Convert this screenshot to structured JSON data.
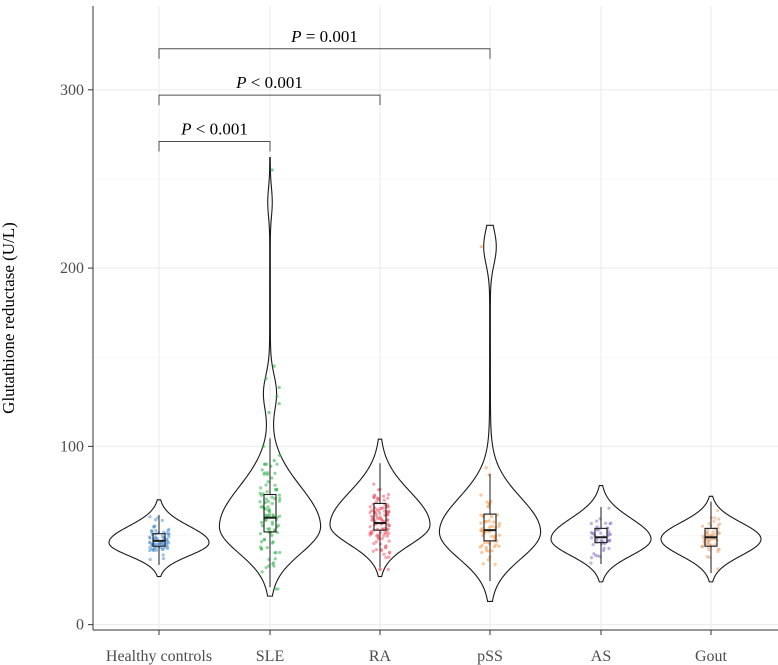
{
  "chart_data": {
    "type": "violin",
    "title": "",
    "xlabel": "",
    "ylabel": "Glutathione reductase (U/L)",
    "ylim": [
      -3,
      347
    ],
    "yticks": [
      0,
      100,
      200,
      300
    ],
    "y_tick_labels": [
      "0",
      "100",
      "200",
      "300"
    ],
    "grid": true,
    "categories": [
      "Healthy controls",
      "SLE",
      "RA",
      "pSS",
      "AS",
      "Gout"
    ],
    "groups": [
      {
        "name": "Healthy controls",
        "color": "#4a8fcf",
        "min": 27,
        "q1": 44,
        "median": 47,
        "q3": 51,
        "max": 70,
        "mode": 46,
        "n": 70,
        "jitter_max": 64
      },
      {
        "name": "SLE",
        "color": "#2db34a",
        "min": 16,
        "q1": 52,
        "median": 60,
        "q3": 73,
        "max": 262,
        "mode": 55,
        "n": 90,
        "jitter_max": 255
      },
      {
        "name": "RA",
        "color": "#ef5a6a",
        "min": 27,
        "q1": 53,
        "median": 57,
        "q3": 68,
        "max": 104,
        "mode": 56,
        "n": 110,
        "jitter_max": 88
      },
      {
        "name": "pSS",
        "color": "#f59a4a",
        "min": 13,
        "q1": 47,
        "median": 53,
        "q3": 62,
        "max": 224,
        "mode": 52,
        "n": 55,
        "jitter_max": 212
      },
      {
        "name": "AS",
        "color": "#8e72c4",
        "min": 24,
        "q1": 46,
        "median": 49,
        "q3": 54,
        "max": 78,
        "mode": 48,
        "n": 45,
        "jitter_max": 70
      },
      {
        "name": "Gout",
        "color": "#e8a579",
        "min": 24,
        "q1": 44,
        "median": 49,
        "q3": 54,
        "max": 72,
        "mode": 48,
        "n": 60,
        "jitter_max": 66
      }
    ],
    "annotations": [
      {
        "from": "Healthy controls",
        "to": "pSS",
        "y": 323,
        "label_p": "P",
        "label_rest": " = 0.001"
      },
      {
        "from": "Healthy controls",
        "to": "RA",
        "y": 297,
        "label_p": "P",
        "label_rest": " < 0.001"
      },
      {
        "from": "Healthy controls",
        "to": "SLE",
        "y": 271,
        "label_p": "P",
        "label_rest": " < 0.001"
      }
    ]
  }
}
